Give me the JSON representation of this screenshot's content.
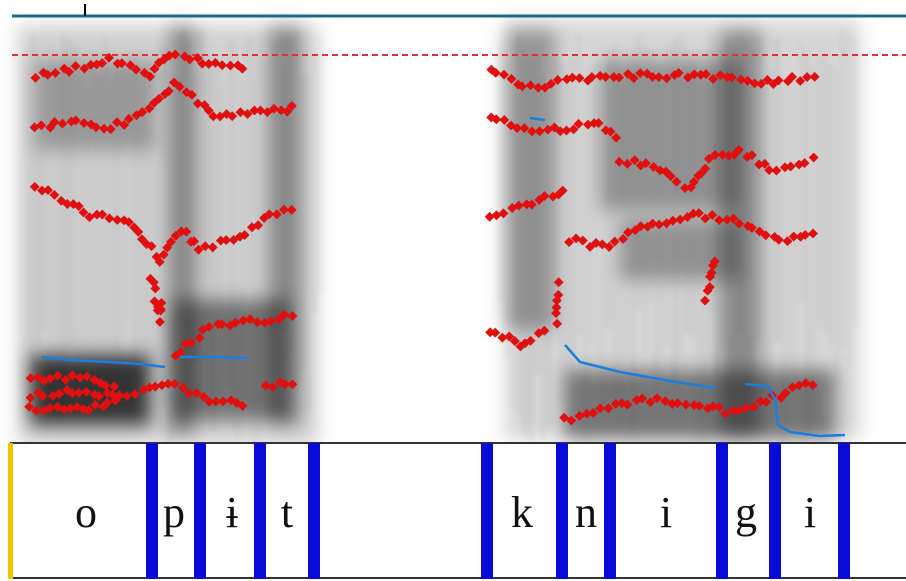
{
  "tier": {
    "intervals": [
      "o",
      "p",
      "ɨ",
      "t",
      "k",
      "n",
      "i",
      "g",
      "i"
    ]
  }
}
